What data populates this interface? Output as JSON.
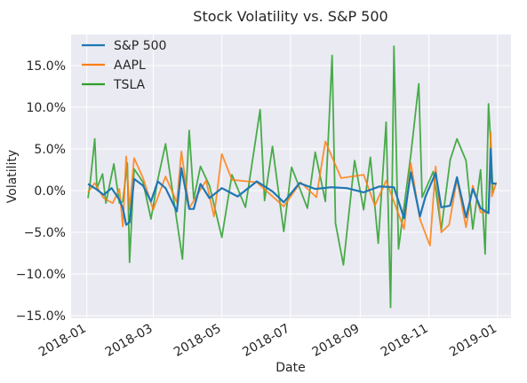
{
  "colors": {
    "plot_bg": "#eaeaf2",
    "grid": "#ffffff",
    "text": "#262626"
  },
  "chart_data": {
    "type": "line",
    "title": "Stock Volatility vs. S&P 500",
    "xlabel": "Date",
    "ylabel": "Volatility",
    "x_is_date": true,
    "xlim": [
      "2017-12-18",
      "2019-01-13"
    ],
    "ylim": [
      -15.3,
      18.7
    ],
    "y_unit": "%",
    "grid": true,
    "legend_position": "upper-left",
    "x_ticks": [
      {
        "date": "2018-01-01",
        "label": "2018-01"
      },
      {
        "date": "2018-03-01",
        "label": "2018-03"
      },
      {
        "date": "2018-05-01",
        "label": "2018-05"
      },
      {
        "date": "2018-07-01",
        "label": "2018-07"
      },
      {
        "date": "2018-09-01",
        "label": "2018-09"
      },
      {
        "date": "2018-11-01",
        "label": "2018-11"
      },
      {
        "date": "2019-01-01",
        "label": "2019-01"
      }
    ],
    "y_ticks": [
      {
        "value": -15,
        "label": "−15.0%"
      },
      {
        "value": -10,
        "label": "−10.0%"
      },
      {
        "value": -5,
        "label": "−5.0%"
      },
      {
        "value": 0,
        "label": "0.0%"
      },
      {
        "value": 5,
        "label": "5.0%"
      },
      {
        "value": 10,
        "label": "10.0%"
      },
      {
        "value": 15,
        "label": "15.0%"
      }
    ],
    "series": [
      {
        "name": "S&P 500",
        "color": "#1f77b4",
        "points": [
          [
            "2018-01-02",
            0.8
          ],
          [
            "2018-01-09",
            0.2
          ],
          [
            "2018-01-16",
            -0.5
          ],
          [
            "2018-01-23",
            0.3
          ],
          [
            "2018-01-30",
            -1.1
          ],
          [
            "2018-02-02",
            -2.1
          ],
          [
            "2018-02-05",
            -4.1
          ],
          [
            "2018-02-08",
            -3.8
          ],
          [
            "2018-02-12",
            1.4
          ],
          [
            "2018-02-20",
            0.6
          ],
          [
            "2018-02-27",
            -1.3
          ],
          [
            "2018-03-05",
            1.1
          ],
          [
            "2018-03-12",
            0.3
          ],
          [
            "2018-03-22",
            -2.5
          ],
          [
            "2018-03-26",
            2.7
          ],
          [
            "2018-04-02",
            -2.2
          ],
          [
            "2018-04-06",
            -2.2
          ],
          [
            "2018-04-12",
            0.8
          ],
          [
            "2018-04-20",
            -0.9
          ],
          [
            "2018-05-01",
            0.3
          ],
          [
            "2018-05-15",
            -0.7
          ],
          [
            "2018-06-01",
            1.1
          ],
          [
            "2018-06-15",
            -0.1
          ],
          [
            "2018-06-25",
            -1.4
          ],
          [
            "2018-07-09",
            0.9
          ],
          [
            "2018-07-23",
            0.2
          ],
          [
            "2018-08-06",
            0.4
          ],
          [
            "2018-08-20",
            0.3
          ],
          [
            "2018-09-04",
            -0.2
          ],
          [
            "2018-09-18",
            0.5
          ],
          [
            "2018-10-01",
            0.4
          ],
          [
            "2018-10-10",
            -3.3
          ],
          [
            "2018-10-16",
            2.2
          ],
          [
            "2018-10-24",
            -3.1
          ],
          [
            "2018-10-29",
            -0.7
          ],
          [
            "2018-11-07",
            2.1
          ],
          [
            "2018-11-12",
            -2.0
          ],
          [
            "2018-11-20",
            -1.8
          ],
          [
            "2018-11-26",
            1.6
          ],
          [
            "2018-12-04",
            -3.2
          ],
          [
            "2018-12-10",
            0.2
          ],
          [
            "2018-12-17",
            -2.1
          ],
          [
            "2018-12-24",
            -2.7
          ],
          [
            "2018-12-26",
            5.0
          ],
          [
            "2018-12-27",
            0.9
          ],
          [
            "2018-12-31",
            0.8
          ]
        ]
      },
      {
        "name": "AAPL",
        "color": "#ff7f0e",
        "points": [
          [
            "2018-01-02",
            -0.2
          ],
          [
            "2018-01-08",
            0.9
          ],
          [
            "2018-01-16",
            -0.9
          ],
          [
            "2018-01-24",
            -1.5
          ],
          [
            "2018-01-30",
            0.2
          ],
          [
            "2018-02-02",
            -4.3
          ],
          [
            "2018-02-05",
            4.1
          ],
          [
            "2018-02-08",
            -2.3
          ],
          [
            "2018-02-12",
            3.9
          ],
          [
            "2018-02-20",
            1.5
          ],
          [
            "2018-03-01",
            -2.3
          ],
          [
            "2018-03-12",
            1.7
          ],
          [
            "2018-03-22",
            -1.4
          ],
          [
            "2018-03-26",
            4.7
          ],
          [
            "2018-04-02",
            -2.1
          ],
          [
            "2018-04-17",
            1.2
          ],
          [
            "2018-04-24",
            -3.1
          ],
          [
            "2018-05-01",
            4.4
          ],
          [
            "2018-05-10",
            1.3
          ],
          [
            "2018-06-01",
            1.0
          ],
          [
            "2018-06-25",
            -1.9
          ],
          [
            "2018-07-10",
            1.0
          ],
          [
            "2018-07-24",
            -0.8
          ],
          [
            "2018-08-01",
            5.9
          ],
          [
            "2018-08-15",
            1.5
          ],
          [
            "2018-09-04",
            1.9
          ],
          [
            "2018-09-14",
            -1.8
          ],
          [
            "2018-09-24",
            1.2
          ],
          [
            "2018-10-10",
            -4.6
          ],
          [
            "2018-10-16",
            3.3
          ],
          [
            "2018-10-24",
            -3.4
          ],
          [
            "2018-11-02",
            -6.6
          ],
          [
            "2018-11-07",
            2.9
          ],
          [
            "2018-11-12",
            -5.0
          ],
          [
            "2018-11-19",
            -4.1
          ],
          [
            "2018-11-26",
            1.4
          ],
          [
            "2018-12-04",
            -4.4
          ],
          [
            "2018-12-10",
            0.6
          ],
          [
            "2018-12-17",
            -2.6
          ],
          [
            "2018-12-24",
            -2.6
          ],
          [
            "2018-12-26",
            7.0
          ],
          [
            "2018-12-27",
            -0.7
          ],
          [
            "2018-12-31",
            1.0
          ]
        ]
      },
      {
        "name": "TSLA",
        "color": "#2ca02c",
        "points": [
          [
            "2018-01-02",
            -0.9
          ],
          [
            "2018-01-04",
            1.0
          ],
          [
            "2018-01-08",
            6.2
          ],
          [
            "2018-01-10",
            0.3
          ],
          [
            "2018-01-15",
            2.0
          ],
          [
            "2018-01-18",
            -1.5
          ],
          [
            "2018-01-25",
            3.2
          ],
          [
            "2018-01-30",
            -1.5
          ],
          [
            "2018-02-02",
            -1.3
          ],
          [
            "2018-02-06",
            3.3
          ],
          [
            "2018-02-08",
            -8.6
          ],
          [
            "2018-02-12",
            2.6
          ],
          [
            "2018-02-20",
            1.0
          ],
          [
            "2018-02-27",
            -3.4
          ],
          [
            "2018-03-05",
            1.3
          ],
          [
            "2018-03-12",
            5.6
          ],
          [
            "2018-03-20",
            -1.8
          ],
          [
            "2018-03-27",
            -8.2
          ],
          [
            "2018-04-02",
            7.2
          ],
          [
            "2018-04-06",
            -1.0
          ],
          [
            "2018-04-12",
            2.9
          ],
          [
            "2018-04-20",
            0.6
          ],
          [
            "2018-05-01",
            -5.6
          ],
          [
            "2018-05-10",
            1.9
          ],
          [
            "2018-05-22",
            -2.0
          ],
          [
            "2018-06-04",
            9.7
          ],
          [
            "2018-06-08",
            -1.2
          ],
          [
            "2018-06-15",
            5.3
          ],
          [
            "2018-06-25",
            -4.9
          ],
          [
            "2018-07-02",
            2.8
          ],
          [
            "2018-07-16",
            -2.1
          ],
          [
            "2018-07-23",
            4.6
          ],
          [
            "2018-08-01",
            -1.3
          ],
          [
            "2018-08-07",
            16.2
          ],
          [
            "2018-08-10",
            -3.9
          ],
          [
            "2018-08-17",
            -8.9
          ],
          [
            "2018-08-27",
            3.6
          ],
          [
            "2018-09-04",
            -2.3
          ],
          [
            "2018-09-10",
            4.0
          ],
          [
            "2018-09-17",
            -6.3
          ],
          [
            "2018-09-24",
            8.2
          ],
          [
            "2018-09-28",
            -14.0
          ],
          [
            "2018-10-01",
            17.3
          ],
          [
            "2018-10-05",
            -7.0
          ],
          [
            "2018-10-16",
            4.3
          ],
          [
            "2018-10-23",
            12.8
          ],
          [
            "2018-10-26",
            -0.8
          ],
          [
            "2018-11-05",
            2.3
          ],
          [
            "2018-11-12",
            -4.7
          ],
          [
            "2018-11-20",
            3.7
          ],
          [
            "2018-11-26",
            6.2
          ],
          [
            "2018-12-04",
            3.6
          ],
          [
            "2018-12-10",
            -4.6
          ],
          [
            "2018-12-17",
            2.5
          ],
          [
            "2018-12-21",
            -7.6
          ],
          [
            "2018-12-24",
            10.4
          ],
          [
            "2018-12-26",
            5.6
          ],
          [
            "2018-12-28",
            -0.3
          ]
        ]
      }
    ]
  }
}
